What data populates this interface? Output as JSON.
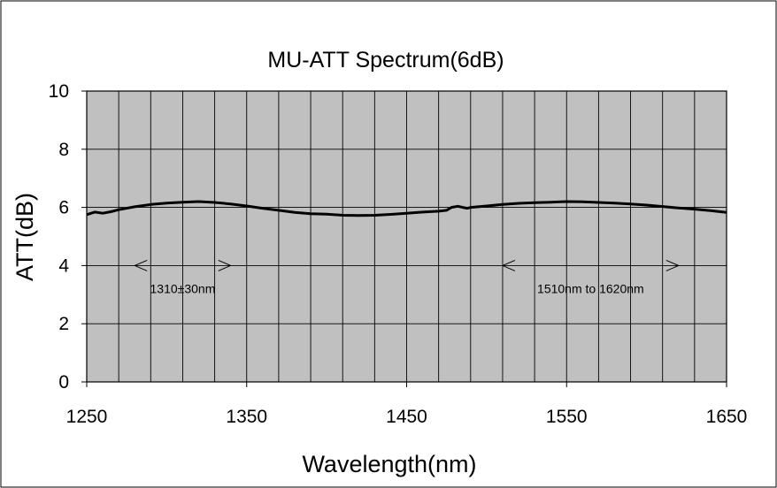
{
  "chart_data": {
    "type": "line",
    "title": "MU-ATT Spectrum(6dB)",
    "xlabel": "Wavelength(nm)",
    "ylabel": "ATT(dB)",
    "xlim": [
      1250,
      1650
    ],
    "ylim": [
      0,
      10
    ],
    "x_ticks": [
      "1250",
      "1350",
      "1450",
      "1550",
      "1650"
    ],
    "y_ticks": [
      "0",
      "2",
      "4",
      "6",
      "8",
      "10"
    ],
    "grid": true,
    "x_grid_step": 20,
    "y_grid_step": 2,
    "plot_background": "#c0c0c0",
    "line_color": "#000000",
    "series": [
      {
        "x": [
          1250,
          1255,
          1260,
          1265,
          1270,
          1280,
          1290,
          1300,
          1310,
          1320,
          1330,
          1340,
          1350,
          1360,
          1370,
          1380,
          1390,
          1400,
          1410,
          1420,
          1430,
          1440,
          1450,
          1460,
          1470,
          1475,
          1478,
          1482,
          1485,
          1488,
          1490,
          1500,
          1510,
          1520,
          1530,
          1540,
          1550,
          1560,
          1570,
          1580,
          1590,
          1600,
          1610,
          1620,
          1630,
          1640,
          1650
        ],
        "values": [
          5.75,
          5.84,
          5.8,
          5.85,
          5.92,
          6.02,
          6.1,
          6.15,
          6.18,
          6.2,
          6.17,
          6.12,
          6.05,
          5.97,
          5.9,
          5.83,
          5.78,
          5.77,
          5.73,
          5.72,
          5.73,
          5.76,
          5.8,
          5.84,
          5.87,
          5.9,
          6.0,
          6.04,
          6.0,
          5.97,
          6.0,
          6.05,
          6.1,
          6.14,
          6.16,
          6.18,
          6.2,
          6.19,
          6.17,
          6.15,
          6.12,
          6.08,
          6.03,
          5.98,
          5.94,
          5.89,
          5.83
        ]
      }
    ],
    "annotations": [
      {
        "text": "1310±30nm",
        "x_range": [
          1280,
          1340
        ],
        "y": 4
      },
      {
        "text": "1510nm to 1620nm",
        "x_range": [
          1510,
          1620
        ],
        "y": 4
      }
    ]
  }
}
